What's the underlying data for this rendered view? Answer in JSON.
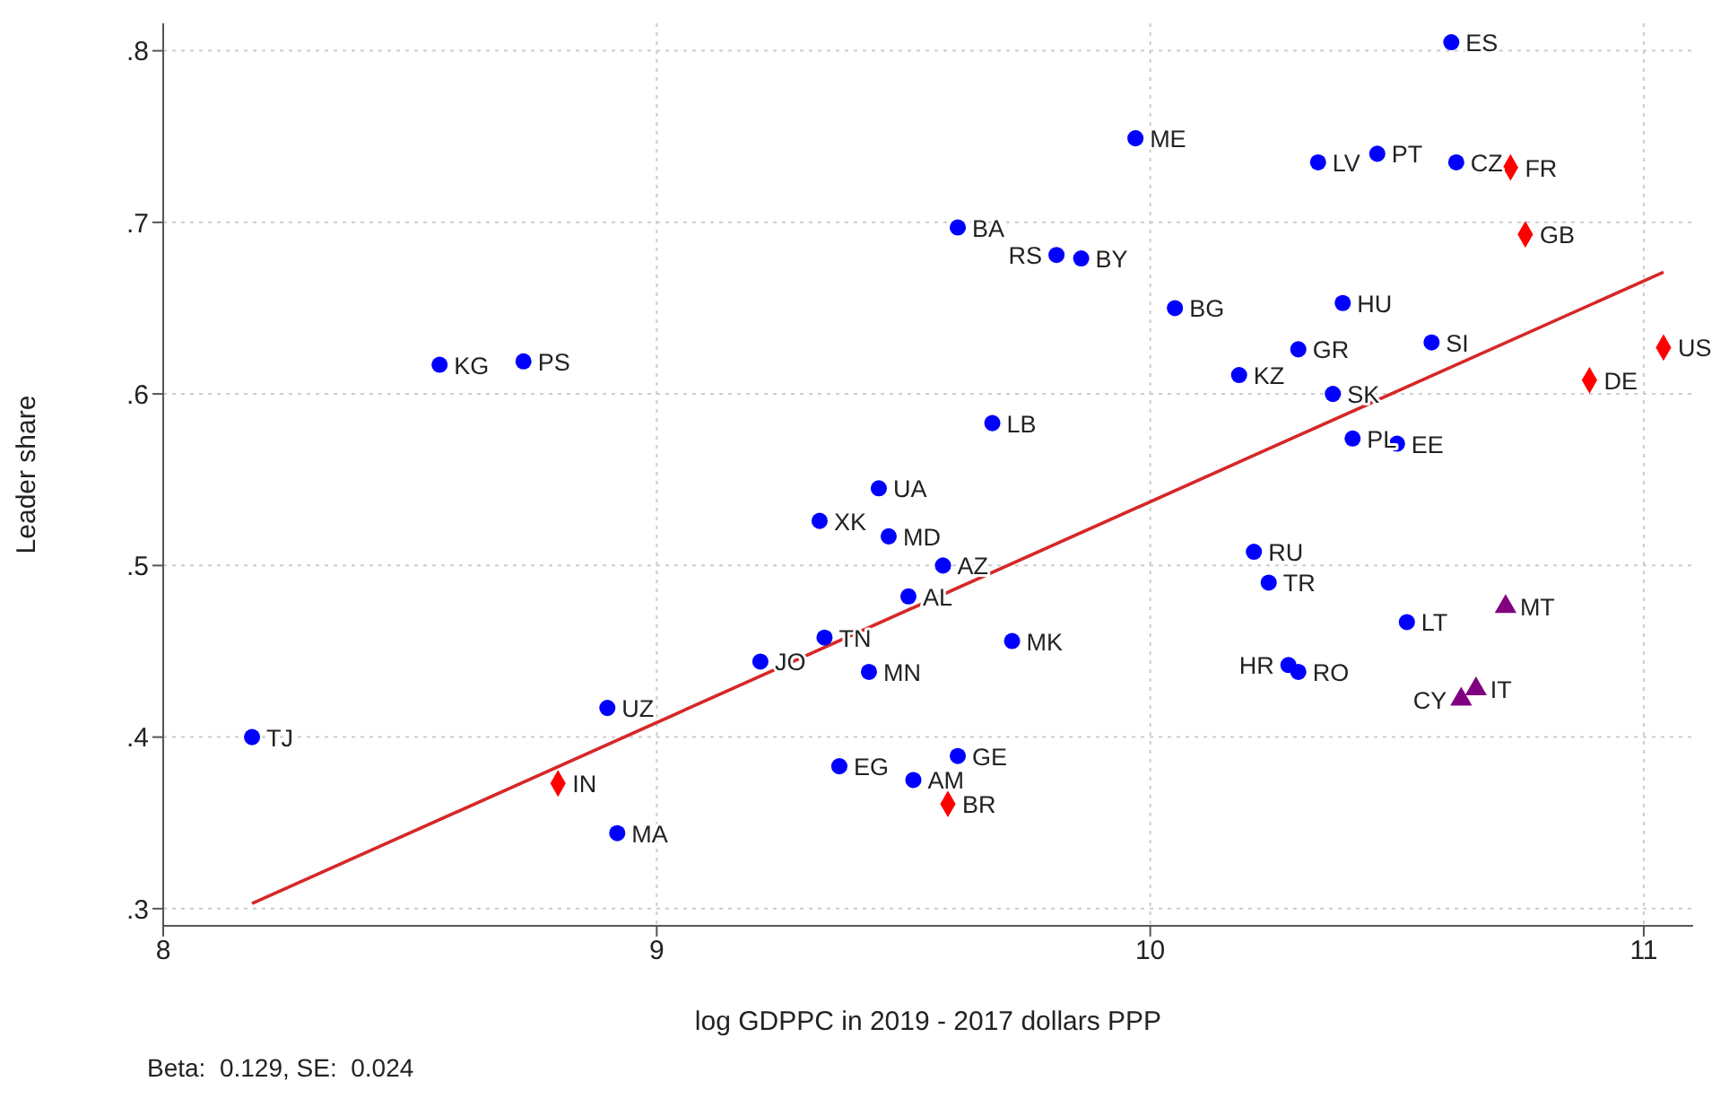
{
  "chart_data": {
    "type": "scatter",
    "xlabel": "log GDPPC in 2019 - 2017 dollars PPP",
    "ylabel": "Leader share",
    "xlim": [
      8,
      11.1
    ],
    "xticks": [
      8,
      9,
      10,
      11
    ],
    "ylim": [
      0.29,
      0.816
    ],
    "yticks": [
      {
        "value": 0.3,
        "label": ".3"
      },
      {
        "value": 0.4,
        "label": ".4"
      },
      {
        "value": 0.5,
        "label": ".5"
      },
      {
        "value": 0.6,
        "label": ".6"
      },
      {
        "value": 0.7,
        "label": ".7"
      },
      {
        "value": 0.8,
        "label": ".8"
      }
    ],
    "grid": true,
    "legend": false,
    "series": [
      {
        "marker": "circle",
        "color": "#0000ff",
        "x": [
          10.61,
          9.97,
          10.34,
          10.46,
          10.62,
          9.61,
          9.81,
          9.86,
          10.05,
          10.39,
          10.3,
          10.57,
          10.18,
          10.37,
          10.41,
          10.5,
          8.56,
          8.73,
          9.68,
          9.45,
          9.33,
          9.47,
          9.58,
          9.51,
          9.34,
          9.21,
          9.43,
          9.72,
          8.9,
          8.18,
          9.37,
          9.52,
          9.61,
          8.92,
          10.21,
          10.24,
          10.28,
          10.3,
          10.52
        ],
        "values": [
          0.805,
          0.749,
          0.735,
          0.74,
          0.735,
          0.697,
          0.681,
          0.679,
          0.65,
          0.653,
          0.626,
          0.63,
          0.611,
          0.6,
          0.574,
          0.571,
          0.617,
          0.619,
          0.583,
          0.545,
          0.526,
          0.517,
          0.5,
          0.482,
          0.458,
          0.444,
          0.438,
          0.456,
          0.417,
          0.4,
          0.383,
          0.375,
          0.389,
          0.344,
          0.508,
          0.49,
          0.442,
          0.438,
          0.467
        ]
      },
      {
        "marker": "diamond",
        "color": "#ff0000",
        "x": [
          10.73,
          10.76,
          11.04,
          10.89,
          8.8,
          9.59
        ],
        "values": [
          0.732,
          0.693,
          0.627,
          0.608,
          0.373,
          0.361
        ]
      },
      {
        "marker": "triangle",
        "color": "#800080",
        "x": [
          10.72,
          10.66,
          10.63
        ],
        "values": [
          0.476,
          0.428,
          0.422
        ]
      },
      {
        "type": "line",
        "marker": "none",
        "color": "#d62728",
        "x": [
          8.18,
          11.04
        ],
        "values": [
          0.303,
          0.671
        ]
      }
    ],
    "annotations": [
      {
        "text": "ES",
        "x": 10.61,
        "y": 0.805
      },
      {
        "text": "ME",
        "x": 9.97,
        "y": 0.749
      },
      {
        "text": "LV",
        "x": 10.34,
        "y": 0.735
      },
      {
        "text": "PT",
        "x": 10.46,
        "y": 0.74
      },
      {
        "text": "CZ",
        "x": 10.62,
        "y": 0.735
      },
      {
        "text": "BA",
        "x": 9.61,
        "y": 0.697
      },
      {
        "text": "RS",
        "x": 9.81,
        "y": 0.681
      },
      {
        "text": "BY",
        "x": 9.86,
        "y": 0.679
      },
      {
        "text": "BG",
        "x": 10.05,
        "y": 0.65
      },
      {
        "text": "HU",
        "x": 10.39,
        "y": 0.653
      },
      {
        "text": "GR",
        "x": 10.3,
        "y": 0.626
      },
      {
        "text": "SI",
        "x": 10.57,
        "y": 0.63
      },
      {
        "text": "KZ",
        "x": 10.18,
        "y": 0.611
      },
      {
        "text": "SK",
        "x": 10.37,
        "y": 0.6
      },
      {
        "text": "PL",
        "x": 10.41,
        "y": 0.574
      },
      {
        "text": "EE",
        "x": 10.5,
        "y": 0.571
      },
      {
        "text": "KG",
        "x": 8.56,
        "y": 0.617
      },
      {
        "text": "PS",
        "x": 8.73,
        "y": 0.619
      },
      {
        "text": "LB",
        "x": 9.68,
        "y": 0.583
      },
      {
        "text": "UA",
        "x": 9.45,
        "y": 0.545
      },
      {
        "text": "XK",
        "x": 9.33,
        "y": 0.526
      },
      {
        "text": "MD",
        "x": 9.47,
        "y": 0.517
      },
      {
        "text": "AZ",
        "x": 9.58,
        "y": 0.5
      },
      {
        "text": "AL",
        "x": 9.51,
        "y": 0.482
      },
      {
        "text": "TN",
        "x": 9.34,
        "y": 0.458
      },
      {
        "text": "JO",
        "x": 9.21,
        "y": 0.444
      },
      {
        "text": "MN",
        "x": 9.43,
        "y": 0.438
      },
      {
        "text": "MK",
        "x": 9.72,
        "y": 0.456
      },
      {
        "text": "UZ",
        "x": 8.9,
        "y": 0.417
      },
      {
        "text": "TJ",
        "x": 8.18,
        "y": 0.4
      },
      {
        "text": "EG",
        "x": 9.37,
        "y": 0.383
      },
      {
        "text": "AM",
        "x": 9.52,
        "y": 0.375
      },
      {
        "text": "GE",
        "x": 9.61,
        "y": 0.389
      },
      {
        "text": "MA",
        "x": 8.92,
        "y": 0.344
      },
      {
        "text": "RU",
        "x": 10.21,
        "y": 0.508
      },
      {
        "text": "TR",
        "x": 10.24,
        "y": 0.49
      },
      {
        "text": "HR",
        "x": 10.28,
        "y": 0.442
      },
      {
        "text": "RO",
        "x": 10.3,
        "y": 0.438
      },
      {
        "text": "LT",
        "x": 10.52,
        "y": 0.467
      },
      {
        "text": "FR",
        "x": 10.73,
        "y": 0.732
      },
      {
        "text": "GB",
        "x": 10.76,
        "y": 0.693
      },
      {
        "text": "US",
        "x": 11.04,
        "y": 0.627
      },
      {
        "text": "DE",
        "x": 10.89,
        "y": 0.608
      },
      {
        "text": "IN",
        "x": 8.8,
        "y": 0.373
      },
      {
        "text": "BR",
        "x": 9.59,
        "y": 0.361
      },
      {
        "text": "MT",
        "x": 10.72,
        "y": 0.476
      },
      {
        "text": "IT",
        "x": 10.66,
        "y": 0.428
      },
      {
        "text": "CY",
        "x": 10.63,
        "y": 0.422
      },
      "Beta:  0.129, SE:  0.024"
    ]
  }
}
